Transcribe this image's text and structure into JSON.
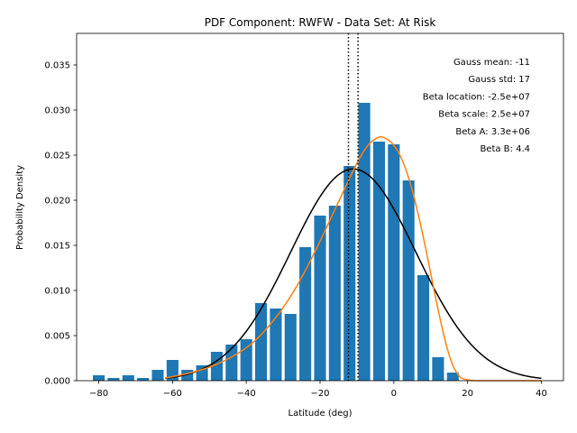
{
  "chart_data": {
    "type": "bar",
    "title": "PDF Component: RWFW - Data Set: At Risk",
    "xlabel": "Latitude (deg)",
    "ylabel": "Probability Density",
    "xlim": [
      -86,
      46
    ],
    "ylim": [
      0,
      0.0385
    ],
    "xticks": [
      -80,
      -60,
      -40,
      -20,
      0,
      20,
      40
    ],
    "xtick_labels": [
      "−80",
      "−60",
      "−40",
      "−20",
      "0",
      "20",
      "40"
    ],
    "yticks": [
      0,
      0.005,
      0.01,
      0.015,
      0.02,
      0.025,
      0.03,
      0.035
    ],
    "ytick_labels": [
      "0.000",
      "0.005",
      "0.010",
      "0.015",
      "0.020",
      "0.025",
      "0.030",
      "0.035"
    ],
    "bar_width": 3.2,
    "bars": {
      "x": [
        -80,
        -76,
        -72,
        -68,
        -64,
        -60,
        -56,
        -52,
        -48,
        -44,
        -40,
        -36,
        -32,
        -28,
        -24,
        -20,
        -16,
        -12,
        -8,
        -4,
        0,
        4,
        8,
        12,
        16,
        20
      ],
      "values": [
        0.0006,
        0.0003,
        0.0006,
        0.0003,
        0.0012,
        0.0023,
        0.0012,
        0.0017,
        0.0032,
        0.004,
        0.0046,
        0.0086,
        0.008,
        0.0074,
        0.0148,
        0.0183,
        0.0194,
        0.0238,
        0.0308,
        0.0265,
        0.0262,
        0.0222,
        0.0117,
        0.0026,
        0.0009,
        0.0
      ],
      "color": "#1f77b4"
    },
    "series": [
      {
        "kind": "gaussian",
        "mean": -11,
        "std": 17,
        "scale": 1.0,
        "x_range": [
          -62,
          40
        ],
        "color": "#000000"
      },
      {
        "kind": "beta",
        "x": [
          -62,
          -58,
          -54,
          -50,
          -46,
          -42,
          -38,
          -34,
          -30,
          -26,
          -22,
          -18,
          -14,
          -10,
          -7,
          -4,
          -2,
          0,
          2,
          4,
          6,
          8,
          10,
          12,
          14,
          16,
          18,
          20,
          22,
          24,
          30,
          40
        ],
        "values": [
          0.0003,
          0.0006,
          0.001,
          0.0015,
          0.0022,
          0.0031,
          0.0043,
          0.006,
          0.0081,
          0.0107,
          0.0138,
          0.0172,
          0.0207,
          0.0241,
          0.0261,
          0.027,
          0.0268,
          0.0261,
          0.0247,
          0.0225,
          0.0195,
          0.0159,
          0.0119,
          0.0079,
          0.0043,
          0.0017,
          0.0004,
          0.0001,
          0.0,
          0.0,
          0.0,
          0.0
        ],
        "color": "#ff7f0e"
      }
    ],
    "vlines": [
      {
        "x": -12.3,
        "style": "dotted",
        "color": "#000000"
      },
      {
        "x": -9.7,
        "style": "dotted",
        "color": "#000000"
      }
    ],
    "annotations": [
      "Gauss mean: -11",
      "Gauss std: 17",
      "Beta location: -2.5e+07",
      "Beta scale: 2.5e+07",
      "Beta A: 3.3e+06",
      "Beta B: 4.4"
    ],
    "grid": false,
    "legend": "none"
  }
}
